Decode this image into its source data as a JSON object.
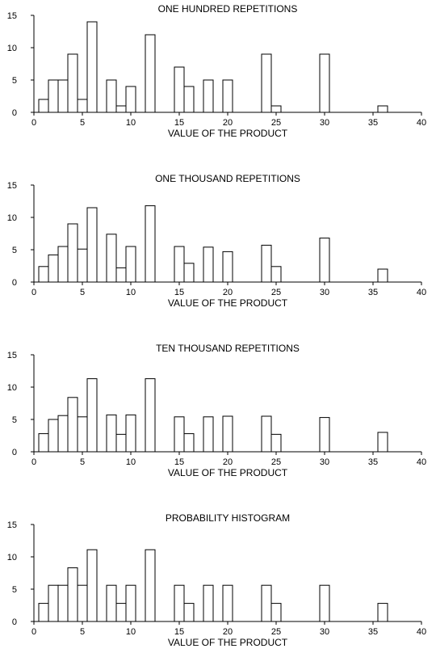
{
  "chart_data": [
    {
      "type": "bar",
      "title": "ONE HUNDRED REPETITIONS",
      "xlabel": "VALUE OF THE PRODUCT",
      "ylabel": "",
      "xlim": [
        0,
        40
      ],
      "ylim": [
        0,
        15
      ],
      "xticks": [
        0,
        5,
        10,
        15,
        20,
        25,
        30,
        35,
        40
      ],
      "yticks": [
        0,
        5,
        10,
        15
      ],
      "x": [
        1,
        2,
        3,
        4,
        5,
        6,
        8,
        9,
        10,
        12,
        15,
        16,
        18,
        20,
        24,
        25,
        30,
        36
      ],
      "values": [
        2,
        5,
        5,
        9,
        2,
        14,
        5,
        1,
        4,
        12,
        7,
        4,
        5,
        5,
        9,
        1,
        9,
        1
      ]
    },
    {
      "type": "bar",
      "title": "ONE THOUSAND REPETITIONS",
      "xlabel": "VALUE OF THE PRODUCT",
      "ylabel": "",
      "xlim": [
        0,
        40
      ],
      "ylim": [
        0,
        15
      ],
      "xticks": [
        0,
        5,
        10,
        15,
        20,
        25,
        30,
        35,
        40
      ],
      "yticks": [
        0,
        5,
        10,
        15
      ],
      "x": [
        1,
        2,
        3,
        4,
        5,
        6,
        8,
        9,
        10,
        12,
        15,
        16,
        18,
        20,
        24,
        25,
        30,
        36
      ],
      "values": [
        2.4,
        4.2,
        5.5,
        9.0,
        5.1,
        11.5,
        7.4,
        2.2,
        5.5,
        11.8,
        5.5,
        2.9,
        5.4,
        4.7,
        5.7,
        2.4,
        6.8,
        2.0
      ]
    },
    {
      "type": "bar",
      "title": "TEN THOUSAND REPETITIONS",
      "xlabel": "VALUE OF THE PRODUCT",
      "ylabel": "",
      "xlim": [
        0,
        40
      ],
      "ylim": [
        0,
        15
      ],
      "xticks": [
        0,
        5,
        10,
        15,
        20,
        25,
        30,
        35,
        40
      ],
      "yticks": [
        0,
        5,
        10,
        15
      ],
      "x": [
        1,
        2,
        3,
        4,
        5,
        6,
        8,
        9,
        10,
        12,
        15,
        16,
        18,
        20,
        24,
        25,
        30,
        36
      ],
      "values": [
        2.8,
        5.0,
        5.6,
        8.4,
        5.4,
        11.3,
        5.7,
        2.7,
        5.7,
        11.3,
        5.4,
        2.8,
        5.4,
        5.5,
        5.5,
        2.7,
        5.3,
        3.0
      ]
    },
    {
      "type": "bar",
      "title": "PROBABILITY HISTOGRAM",
      "xlabel": "VALUE OF THE PRODUCT",
      "ylabel": "",
      "xlim": [
        0,
        40
      ],
      "ylim": [
        0,
        15
      ],
      "xticks": [
        0,
        5,
        10,
        15,
        20,
        25,
        30,
        35,
        40
      ],
      "yticks": [
        0,
        5,
        10,
        15
      ],
      "x": [
        1,
        2,
        3,
        4,
        5,
        6,
        8,
        9,
        10,
        12,
        15,
        16,
        18,
        20,
        24,
        25,
        30,
        36
      ],
      "values": [
        2.8,
        5.6,
        5.6,
        8.3,
        5.6,
        11.1,
        5.6,
        2.8,
        5.6,
        11.1,
        5.6,
        2.8,
        5.6,
        5.6,
        5.6,
        2.8,
        5.6,
        2.8
      ]
    }
  ]
}
